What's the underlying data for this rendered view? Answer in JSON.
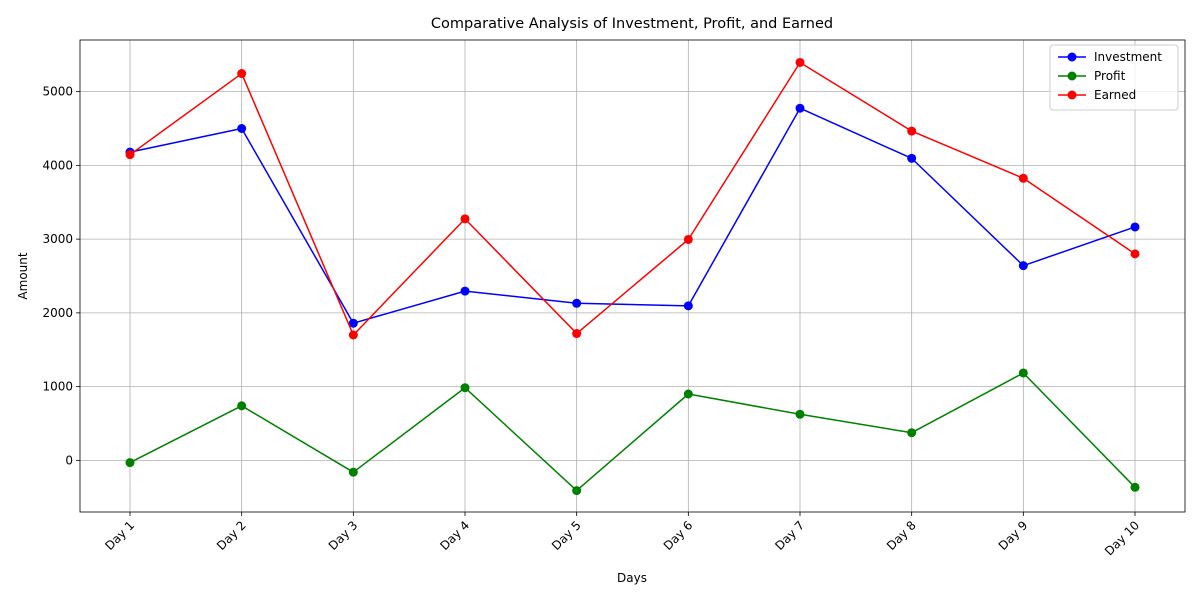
{
  "chart_data": {
    "type": "line",
    "title": "Comparative Analysis of Investment, Profit, and Earned",
    "xlabel": "Days",
    "ylabel": "Amount",
    "categories": [
      "Day 1",
      "Day 2",
      "Day 3",
      "Day 4",
      "Day 5",
      "Day 6",
      "Day 7",
      "Day 8",
      "Day 9",
      "Day 10"
    ],
    "ylim": [
      -700,
      5700
    ],
    "yticks": [
      0,
      1000,
      2000,
      3000,
      4000,
      5000
    ],
    "grid": true,
    "legend_position": "top-right",
    "series": [
      {
        "name": "Investment",
        "color": "#0000ff",
        "values": [
          4180,
          4500,
          1860,
          2295,
          2130,
          2095,
          4775,
          4095,
          2640,
          3165
        ]
      },
      {
        "name": "Profit",
        "color": "#008000",
        "values": [
          -30,
          740,
          -160,
          985,
          -410,
          900,
          625,
          375,
          1185,
          -365
        ]
      },
      {
        "name": "Earned",
        "color": "#ff0000",
        "values": [
          4145,
          5245,
          1700,
          3275,
          1720,
          2995,
          5395,
          4465,
          3825,
          2800
        ]
      }
    ]
  }
}
